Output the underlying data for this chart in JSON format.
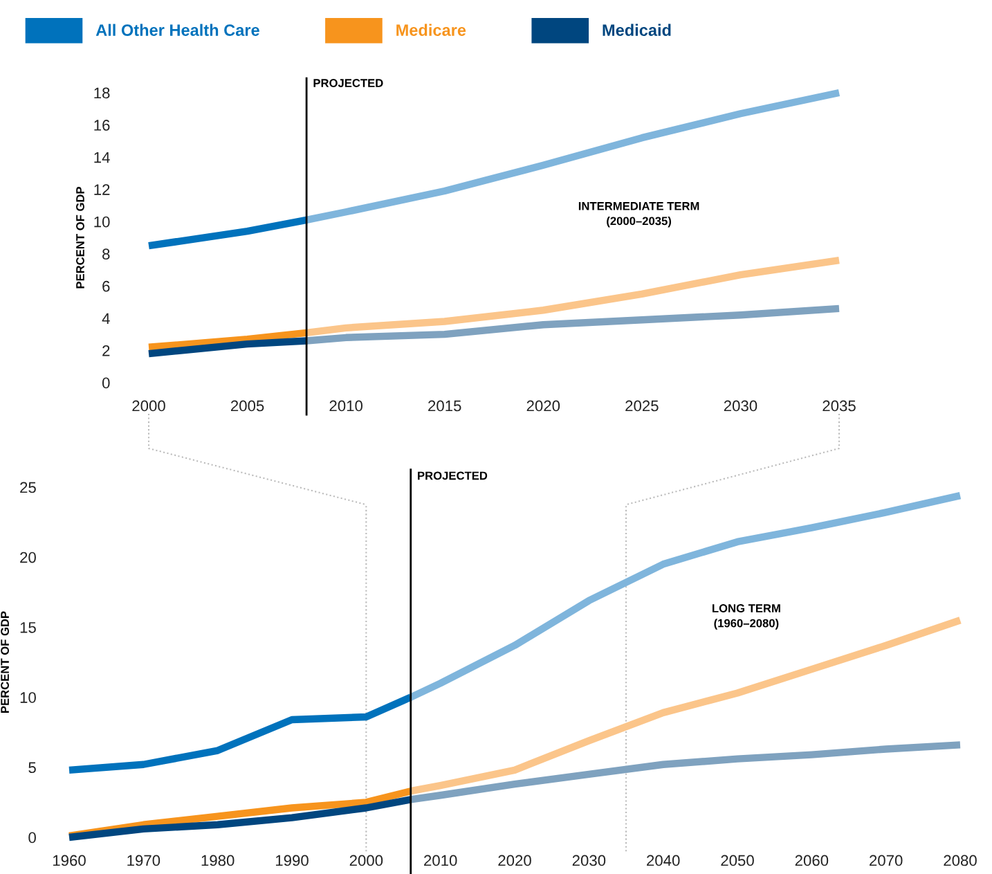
{
  "chart_data": [
    {
      "type": "line",
      "ylabel": "PERCENT OF GDP",
      "xlim": [
        2000,
        2035
      ],
      "ylim": [
        0,
        18
      ],
      "xticks": [
        2000,
        2005,
        2010,
        2015,
        2020,
        2025,
        2030,
        2035
      ],
      "yticks": [
        0,
        2,
        4,
        6,
        8,
        10,
        12,
        14,
        16,
        18
      ],
      "legend": "top left",
      "line_style": "solid",
      "marker": "none",
      "series": [
        {
          "name": "All Other Health Care",
          "color": "#0072bc",
          "x": [
            2000,
            2005,
            2008
          ],
          "values": [
            8.5,
            9.4,
            10.1
          ]
        },
        {
          "name": "Medicare",
          "color": "#f7941d",
          "x": [
            2000,
            2005,
            2008
          ],
          "values": [
            2.2,
            2.7,
            3.1
          ]
        },
        {
          "name": "Medicaid",
          "color": "#00467f",
          "x": [
            2000,
            2005,
            2008
          ],
          "values": [
            1.8,
            2.4,
            2.6
          ]
        },
        {
          "color": "#7fb5dc",
          "x": [
            2008,
            2010,
            2015,
            2020,
            2025,
            2030,
            2035
          ],
          "values": [
            10.1,
            10.6,
            11.9,
            13.5,
            15.2,
            16.7,
            18.0
          ]
        },
        {
          "color": "#fbc58a",
          "x": [
            2008,
            2010,
            2015,
            2020,
            2025,
            2030,
            2035
          ],
          "values": [
            3.1,
            3.4,
            3.8,
            4.5,
            5.5,
            6.7,
            7.6
          ]
        },
        {
          "color": "#7fa2bf",
          "x": [
            2008,
            2010,
            2015,
            2020,
            2025,
            2030,
            2035
          ],
          "values": [
            2.6,
            2.8,
            3.0,
            3.6,
            3.9,
            4.2,
            4.6
          ]
        }
      ],
      "ref_lines": [
        {
          "axis": "x",
          "value": 2008,
          "label": "PROJECTED",
          "color": "#000000",
          "line_style": "solid"
        }
      ],
      "annotations": [
        "INTERMEDIATE TERM\n(2000–2035)"
      ]
    },
    {
      "type": "line",
      "ylabel": "PERCENT OF GDP",
      "xlim": [
        1960,
        2080
      ],
      "ylim": [
        0,
        25
      ],
      "xticks": [
        1960,
        1970,
        1980,
        1990,
        2000,
        2010,
        2020,
        2030,
        2040,
        2050,
        2060,
        2070,
        2080
      ],
      "yticks": [
        0,
        5,
        10,
        15,
        20,
        25
      ],
      "line_style": "solid",
      "marker": "none",
      "series": [
        {
          "color": "#0072bc",
          "x": [
            1960,
            1970,
            1980,
            1990,
            2000,
            2006
          ],
          "values": [
            4.8,
            5.2,
            6.2,
            8.4,
            8.6,
            10.0
          ]
        },
        {
          "color": "#f7941d",
          "x": [
            1960,
            1970,
            1980,
            1990,
            2000,
            2006
          ],
          "values": [
            0.1,
            0.9,
            1.5,
            2.1,
            2.5,
            3.3
          ]
        },
        {
          "color": "#00467f",
          "x": [
            1960,
            1970,
            1980,
            1990,
            2000,
            2006
          ],
          "values": [
            0.0,
            0.6,
            0.9,
            1.4,
            2.1,
            2.7
          ]
        },
        {
          "color": "#7fb5dc",
          "x": [
            2006,
            2010,
            2020,
            2030,
            2040,
            2050,
            2060,
            2070,
            2080
          ],
          "values": [
            10.0,
            11.0,
            13.7,
            16.9,
            19.5,
            21.1,
            22.1,
            23.2,
            24.4
          ]
        },
        {
          "color": "#fbc58a",
          "x": [
            2006,
            2010,
            2020,
            2030,
            2040,
            2050,
            2060,
            2070,
            2080
          ],
          "values": [
            3.3,
            3.7,
            4.8,
            6.9,
            8.9,
            10.3,
            12.0,
            13.7,
            15.5
          ]
        },
        {
          "color": "#7fa2bf",
          "x": [
            2006,
            2010,
            2020,
            2030,
            2040,
            2050,
            2060,
            2070,
            2080
          ],
          "values": [
            2.7,
            3.0,
            3.8,
            4.5,
            5.2,
            5.6,
            5.9,
            6.3,
            6.6
          ]
        }
      ],
      "ref_lines": [
        {
          "axis": "x",
          "value": 2006,
          "label": "PROJECTED",
          "color": "#000000",
          "line_style": "solid"
        },
        {
          "axis": "x",
          "value": 2000,
          "label": null,
          "color": "#bbbbbb",
          "line_style": "dotted"
        },
        {
          "axis": "x",
          "value": 2035,
          "label": null,
          "color": "#bbbbbb",
          "line_style": "dotted"
        }
      ],
      "annotations": [
        "LONG TERM\n(1960–2080)"
      ]
    }
  ]
}
